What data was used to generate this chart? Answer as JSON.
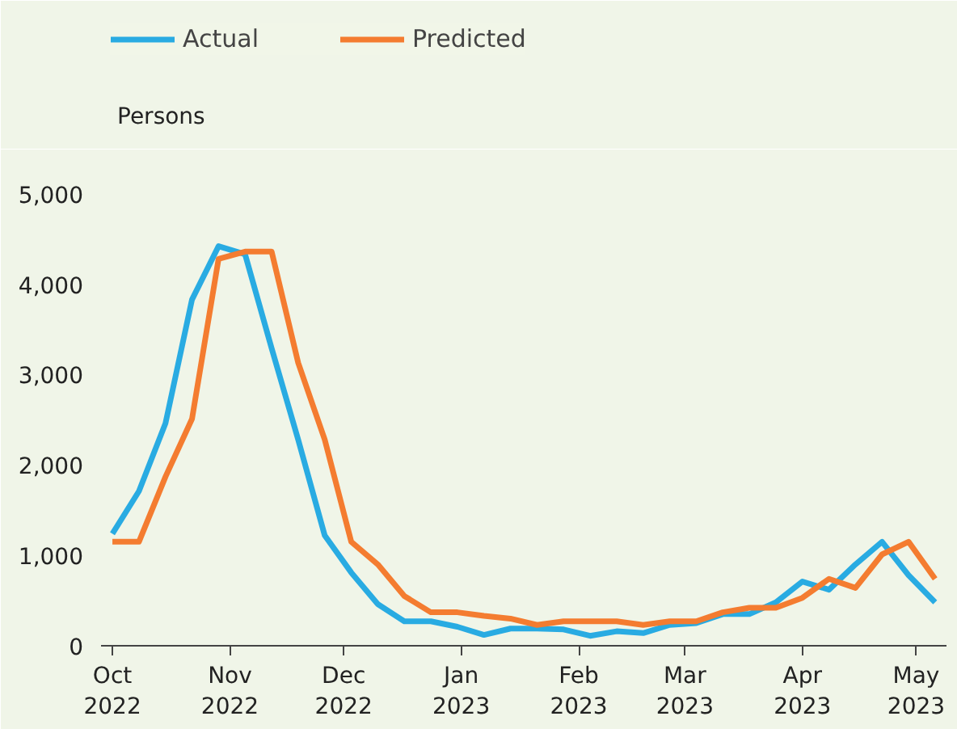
{
  "chart_data": {
    "type": "line",
    "ylabel": "Persons",
    "legend": "top left",
    "grid": false,
    "line_style": "solid",
    "marker": "none",
    "x": [
      "2022-10-01",
      "2022-10-08",
      "2022-10-15",
      "2022-10-22",
      "2022-10-29",
      "2022-11-05",
      "2022-11-12",
      "2022-11-19",
      "2022-11-26",
      "2022-12-03",
      "2022-12-10",
      "2022-12-17",
      "2022-12-24",
      "2022-12-31",
      "2023-01-07",
      "2023-01-14",
      "2023-01-21",
      "2023-01-28",
      "2023-02-04",
      "2023-02-11",
      "2023-02-18",
      "2023-02-25",
      "2023-03-04",
      "2023-03-11",
      "2023-03-18",
      "2023-03-25",
      "2023-04-01",
      "2023-04-08",
      "2023-04-15",
      "2023-04-22",
      "2023-04-29",
      "2023-05-06"
    ],
    "series": [
      {
        "name": "Actual",
        "color": "#29abe2",
        "values": [
          1240,
          1710,
          2460,
          3830,
          4420,
          4330,
          3290,
          2280,
          1220,
          810,
          460,
          270,
          270,
          210,
          120,
          190,
          190,
          180,
          110,
          160,
          140,
          230,
          250,
          350,
          350,
          480,
          710,
          620,
          900,
          1150,
          780,
          480
        ]
      },
      {
        "name": "Predicted",
        "color": "#f47c30",
        "values": [
          1150,
          1150,
          1870,
          2510,
          4280,
          4360,
          4360,
          3130,
          2280,
          1150,
          900,
          550,
          370,
          370,
          330,
          300,
          230,
          270,
          270,
          270,
          230,
          270,
          270,
          370,
          420,
          420,
          530,
          740,
          640,
          1010,
          1150,
          740
        ]
      }
    ],
    "xlim": [
      "2022-09-28",
      "2023-05-09"
    ],
    "xticks": [
      {
        "value": "2022-10-01",
        "label": "Oct\n2022"
      },
      {
        "value": "2022-11-01",
        "label": "Nov\n2022"
      },
      {
        "value": "2022-12-01",
        "label": "Dec\n2022"
      },
      {
        "value": "2023-01-01",
        "label": "Jan\n2023"
      },
      {
        "value": "2023-02-01",
        "label": "Feb\n2023"
      },
      {
        "value": "2023-03-01",
        "label": "Mar\n2023"
      },
      {
        "value": "2023-04-01",
        "label": "Apr\n2023"
      },
      {
        "value": "2023-05-01",
        "label": "May\n2023"
      }
    ],
    "ylim": [
      0,
      5400
    ],
    "yticks": [
      {
        "value": 0,
        "label": "0"
      },
      {
        "value": 1000,
        "label": "1,000"
      },
      {
        "value": 2000,
        "label": "2,000"
      },
      {
        "value": 3000,
        "label": "3,000"
      },
      {
        "value": 4000,
        "label": "4,000"
      },
      {
        "value": 5000,
        "label": "5,000"
      }
    ]
  }
}
